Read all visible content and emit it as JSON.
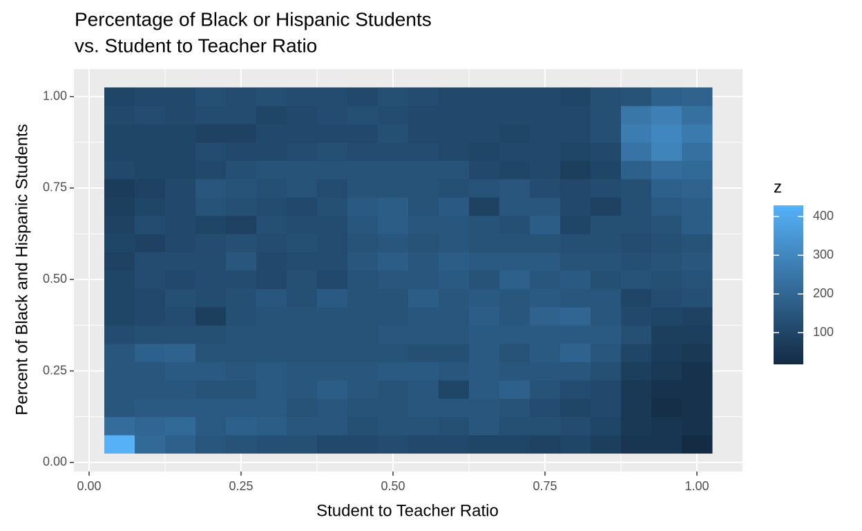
{
  "chart_data": {
    "type": "heatmap",
    "title": [
      "Percentage of Black or Hispanic Students",
      "vs. Student to Teacher Ratio"
    ],
    "x_label": "Student to Teacher Ratio",
    "y_label": "Percent of Black and Hispanic Students",
    "x": [
      0.05,
      0.1,
      0.15,
      0.2,
      0.25,
      0.3,
      0.35,
      0.4,
      0.45,
      0.5,
      0.55,
      0.6,
      0.65,
      0.7,
      0.75,
      0.8,
      0.85,
      0.9,
      0.95,
      1.0
    ],
    "y": [
      0.05,
      0.1,
      0.15,
      0.2,
      0.25,
      0.3,
      0.35,
      0.4,
      0.45,
      0.5,
      0.55,
      0.6,
      0.65,
      0.7,
      0.75,
      0.8,
      0.85,
      0.9,
      0.95,
      1.0
    ],
    "z": [
      [
        429,
        210,
        180,
        150,
        140,
        130,
        130,
        110,
        110,
        120,
        110,
        110,
        100,
        100,
        90,
        100,
        80,
        50,
        50,
        18
      ],
      [
        220,
        200,
        210,
        160,
        180,
        170,
        150,
        150,
        130,
        140,
        140,
        130,
        150,
        130,
        130,
        120,
        100,
        60,
        50,
        40
      ],
      [
        150,
        160,
        160,
        160,
        160,
        160,
        140,
        150,
        140,
        140,
        150,
        150,
        150,
        140,
        120,
        100,
        110,
        60,
        30,
        40
      ],
      [
        150,
        150,
        150,
        140,
        140,
        160,
        150,
        170,
        150,
        140,
        150,
        100,
        160,
        180,
        140,
        120,
        110,
        60,
        40,
        40
      ],
      [
        150,
        150,
        160,
        160,
        150,
        160,
        150,
        150,
        150,
        160,
        160,
        150,
        160,
        150,
        150,
        150,
        130,
        80,
        60,
        40
      ],
      [
        150,
        180,
        190,
        140,
        140,
        140,
        140,
        140,
        140,
        140,
        130,
        130,
        160,
        140,
        160,
        190,
        150,
        100,
        70,
        60
      ],
      [
        120,
        130,
        130,
        130,
        140,
        140,
        140,
        140,
        140,
        150,
        150,
        150,
        160,
        160,
        160,
        160,
        160,
        130,
        80,
        80
      ],
      [
        100,
        110,
        120,
        80,
        130,
        140,
        140,
        140,
        140,
        140,
        150,
        150,
        170,
        150,
        190,
        200,
        150,
        110,
        100,
        90
      ],
      [
        100,
        110,
        130,
        120,
        130,
        150,
        130,
        160,
        140,
        140,
        170,
        150,
        160,
        150,
        160,
        150,
        150,
        100,
        120,
        130
      ],
      [
        100,
        120,
        110,
        120,
        120,
        110,
        130,
        110,
        140,
        150,
        150,
        160,
        140,
        180,
        150,
        160,
        130,
        140,
        130,
        140
      ],
      [
        90,
        120,
        120,
        120,
        150,
        110,
        120,
        120,
        150,
        170,
        150,
        170,
        160,
        160,
        160,
        140,
        140,
        130,
        140,
        150
      ],
      [
        100,
        90,
        110,
        120,
        130,
        120,
        130,
        120,
        140,
        150,
        140,
        150,
        140,
        140,
        140,
        130,
        130,
        120,
        130,
        140
      ],
      [
        90,
        120,
        110,
        100,
        90,
        130,
        120,
        120,
        150,
        170,
        150,
        150,
        140,
        130,
        170,
        100,
        130,
        130,
        140,
        170
      ],
      [
        80,
        100,
        110,
        140,
        130,
        120,
        110,
        130,
        160,
        170,
        140,
        160,
        90,
        150,
        150,
        110,
        90,
        130,
        160,
        170
      ],
      [
        70,
        90,
        110,
        150,
        140,
        130,
        140,
        120,
        140,
        140,
        140,
        130,
        140,
        150,
        120,
        110,
        120,
        130,
        180,
        190
      ],
      [
        110,
        100,
        100,
        110,
        130,
        140,
        140,
        140,
        140,
        140,
        140,
        140,
        110,
        100,
        110,
        80,
        100,
        180,
        220,
        210
      ],
      [
        100,
        100,
        100,
        120,
        110,
        110,
        120,
        130,
        120,
        120,
        120,
        110,
        100,
        110,
        110,
        100,
        110,
        240,
        290,
        230
      ],
      [
        100,
        100,
        100,
        90,
        90,
        110,
        110,
        110,
        110,
        130,
        110,
        110,
        110,
        100,
        110,
        110,
        130,
        270,
        300,
        260
      ],
      [
        110,
        120,
        110,
        120,
        120,
        100,
        110,
        120,
        130,
        120,
        110,
        110,
        110,
        110,
        110,
        110,
        130,
        250,
        280,
        230
      ],
      [
        100,
        110,
        110,
        130,
        120,
        130,
        120,
        120,
        110,
        130,
        120,
        110,
        110,
        110,
        110,
        100,
        130,
        140,
        180,
        190
      ]
    ],
    "xlim": [
      -0.025,
      1.075
    ],
    "ylim": [
      -0.025,
      1.075
    ],
    "xticks": [
      {
        "value": 0,
        "label": "0.00"
      },
      {
        "value": 0.25,
        "label": "0.25"
      },
      {
        "value": 0.5,
        "label": "0.50"
      },
      {
        "value": 0.75,
        "label": "0.75"
      },
      {
        "value": 1,
        "label": "1.00"
      }
    ],
    "yticks": [
      {
        "value": 0,
        "label": "0.00"
      },
      {
        "value": 0.25,
        "label": "0.25"
      },
      {
        "value": 0.5,
        "label": "0.50"
      },
      {
        "value": 0.75,
        "label": "0.75"
      },
      {
        "value": 1,
        "label": "1.00"
      }
    ],
    "minor_xticks": [
      0.125,
      0.375,
      0.625,
      0.875
    ],
    "minor_yticks": [
      0.125,
      0.375,
      0.625,
      0.875
    ],
    "cell_width": 0.05,
    "cell_height": 0.05,
    "legend_title": "z",
    "zlim": [
      18,
      429
    ],
    "zticks": [
      100,
      200,
      300,
      400
    ],
    "colors": [
      "#132B43",
      "#56B1F7"
    ],
    "grid": true
  }
}
